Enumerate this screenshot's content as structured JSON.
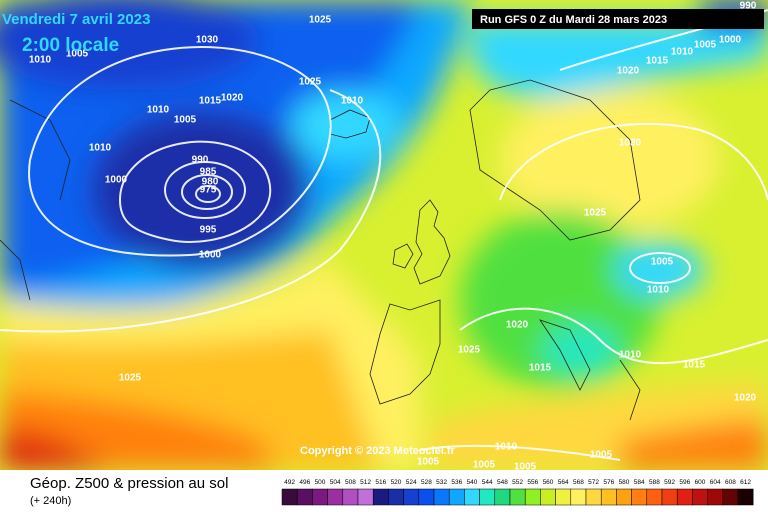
{
  "header": {
    "date": "Vendredi 7 avril 2023",
    "time": "2:00 locale",
    "run": "Run GFS 0 Z du Mardi 28 mars 2023",
    "copyright": "Copyright © 2023 Meteociel.fr"
  },
  "footer": {
    "title": "Géop. Z500 & pression au sol",
    "lead": "(+ 240h)"
  },
  "scale": [
    {
      "value": 492,
      "color": "#3a0a3a"
    },
    {
      "value": 496,
      "color": "#5a1060"
    },
    {
      "value": 500,
      "color": "#7a1a80"
    },
    {
      "value": 504,
      "color": "#9a30a0"
    },
    {
      "value": 508,
      "color": "#b050c0"
    },
    {
      "value": 512,
      "color": "#c070d8"
    },
    {
      "value": 516,
      "color": "#1a1a80"
    },
    {
      "value": 520,
      "color": "#1a2ea8"
    },
    {
      "value": 524,
      "color": "#1840d0"
    },
    {
      "value": 528,
      "color": "#0a50f0"
    },
    {
      "value": 532,
      "color": "#0a78f8"
    },
    {
      "value": 536,
      "color": "#10a8ff"
    },
    {
      "value": 540,
      "color": "#30d8ff"
    },
    {
      "value": 544,
      "color": "#20e8c0"
    },
    {
      "value": 548,
      "color": "#20d880"
    },
    {
      "value": 552,
      "color": "#50e040"
    },
    {
      "value": 556,
      "color": "#90f020"
    },
    {
      "value": 560,
      "color": "#c8f020"
    },
    {
      "value": 564,
      "color": "#f0f040"
    },
    {
      "value": 568,
      "color": "#fff060"
    },
    {
      "value": 572,
      "color": "#ffd840"
    },
    {
      "value": 576,
      "color": "#ffc020"
    },
    {
      "value": 580,
      "color": "#ffa010"
    },
    {
      "value": 584,
      "color": "#ff8010"
    },
    {
      "value": 588,
      "color": "#ff6010"
    },
    {
      "value": 592,
      "color": "#f04010"
    },
    {
      "value": 596,
      "color": "#e02010"
    },
    {
      "value": 600,
      "color": "#c01010"
    },
    {
      "value": 604,
      "color": "#a00808"
    },
    {
      "value": 608,
      "color": "#600404"
    },
    {
      "value": 612,
      "color": "#1a0000"
    }
  ],
  "isobars": [
    1025,
    1030,
    1010,
    1005,
    1025,
    1020,
    1015,
    1010,
    1010,
    1005,
    1010,
    1000,
    990,
    985,
    980,
    975,
    995,
    1000,
    1025,
    1025,
    1020,
    1015,
    1010,
    1015,
    1020,
    1005,
    1010,
    1025,
    1030,
    1020,
    1015,
    1010,
    1005,
    1000,
    990,
    1010,
    1005,
    1005,
    1005,
    1005
  ]
}
